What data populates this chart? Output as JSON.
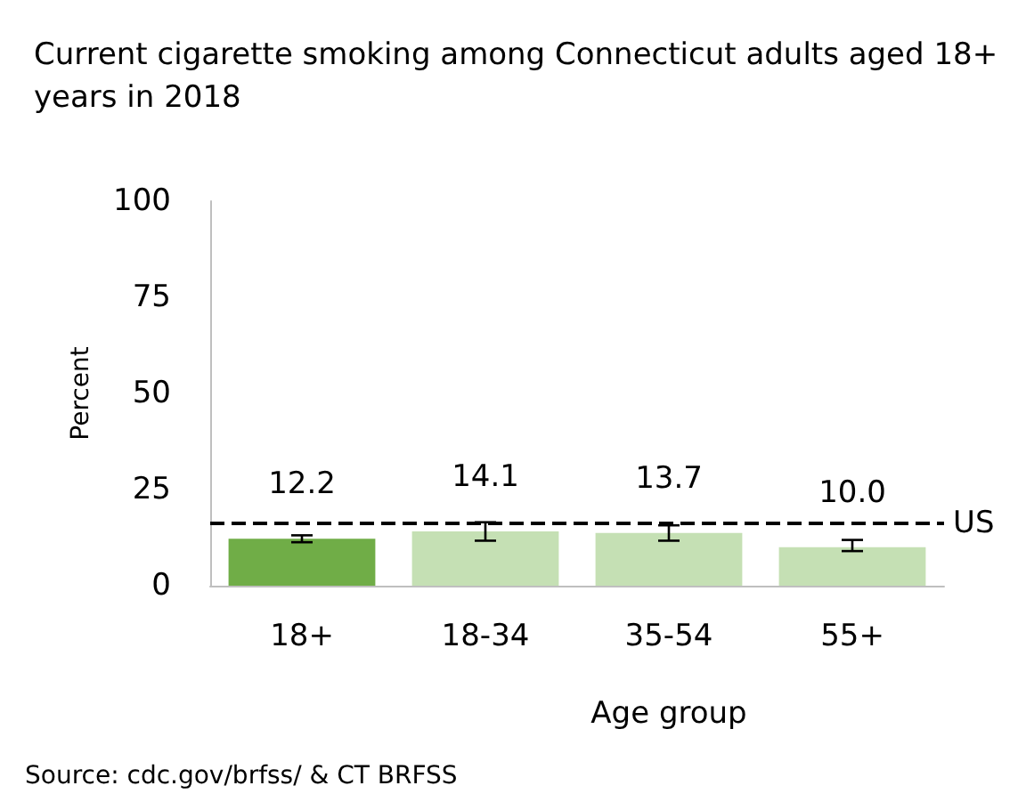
{
  "chart_data": {
    "type": "bar",
    "title": "Current cigarette smoking among Connecticut adults aged 18+ years in 2018",
    "ylabel": "Percent",
    "xlabel": "Age group",
    "categories": [
      "18+",
      "18-34",
      "35-54",
      "55+"
    ],
    "values": [
      12.2,
      14.1,
      13.7,
      10.0
    ],
    "value_labels": [
      "12.2",
      "14.1",
      "13.7",
      "10.0"
    ],
    "colors": [
      "#70ad47",
      "#c5e0b4",
      "#c5e0b4",
      "#c5e0b4"
    ],
    "errors": [
      [
        11.3,
        13.1
      ],
      [
        11.7,
        16.5
      ],
      [
        11.7,
        15.7
      ],
      [
        9.0,
        11.9
      ]
    ],
    "ylim": [
      0,
      100
    ],
    "yticks": [
      0,
      25,
      50,
      75,
      100
    ],
    "grid": false,
    "ref_lines": [
      {
        "axis": "y",
        "value": 16.1,
        "label": "US",
        "color": "#000000",
        "line_style": "dashed"
      }
    ],
    "annotations": [
      "Source: cdc.gov/brfss/ & CT BRFSS"
    ]
  }
}
